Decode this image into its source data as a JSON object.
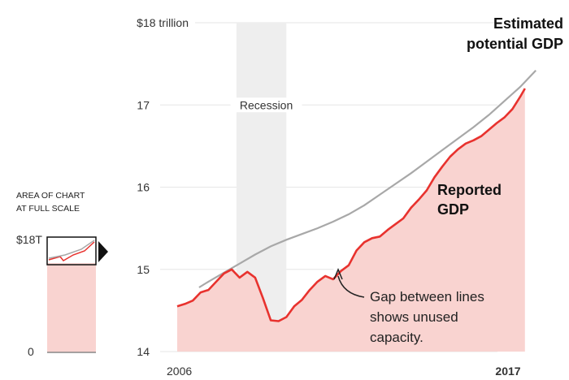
{
  "chart_data": {
    "type": "line",
    "title": "",
    "xlabel": "",
    "ylabel": "",
    "x_start_label": "2006",
    "x_end_label": "2017",
    "x_range": [
      2006.0,
      2017.5
    ],
    "ylim": [
      14,
      18
    ],
    "y_ticks": [
      {
        "value": 18,
        "label": "$18 trillion"
      },
      {
        "value": 17,
        "label": "17"
      },
      {
        "value": 16,
        "label": "16"
      },
      {
        "value": 15,
        "label": "15"
      },
      {
        "value": 14,
        "label": "14"
      }
    ],
    "grid": true,
    "recession": {
      "start": 2007.9,
      "end": 2009.5,
      "label": "Recession"
    },
    "series": [
      {
        "name": "Estimated potential GDP",
        "color": "#a8a8a8",
        "points": [
          [
            2006.7,
            14.78
          ],
          [
            2007.0,
            14.85
          ],
          [
            2007.5,
            14.96
          ],
          [
            2008.0,
            15.07
          ],
          [
            2008.5,
            15.18
          ],
          [
            2009.0,
            15.28
          ],
          [
            2009.5,
            15.36
          ],
          [
            2010.0,
            15.43
          ],
          [
            2010.5,
            15.5
          ],
          [
            2011.0,
            15.58
          ],
          [
            2011.5,
            15.67
          ],
          [
            2012.0,
            15.78
          ],
          [
            2012.5,
            15.91
          ],
          [
            2013.0,
            16.04
          ],
          [
            2013.5,
            16.17
          ],
          [
            2014.0,
            16.31
          ],
          [
            2014.5,
            16.45
          ],
          [
            2015.0,
            16.59
          ],
          [
            2015.5,
            16.73
          ],
          [
            2016.0,
            16.88
          ],
          [
            2016.5,
            17.05
          ],
          [
            2017.0,
            17.22
          ],
          [
            2017.5,
            17.42
          ]
        ]
      },
      {
        "name": "Reported GDP",
        "color": "#e8322e",
        "fill": "#f9d3d0",
        "points": [
          [
            2006.0,
            14.55
          ],
          [
            2006.25,
            14.58
          ],
          [
            2006.5,
            14.62
          ],
          [
            2006.75,
            14.72
          ],
          [
            2007.0,
            14.75
          ],
          [
            2007.25,
            14.85
          ],
          [
            2007.5,
            14.95
          ],
          [
            2007.75,
            15.0
          ],
          [
            2008.0,
            14.9
          ],
          [
            2008.25,
            14.97
          ],
          [
            2008.5,
            14.9
          ],
          [
            2008.75,
            14.65
          ],
          [
            2009.0,
            14.38
          ],
          [
            2009.25,
            14.37
          ],
          [
            2009.5,
            14.42
          ],
          [
            2009.75,
            14.55
          ],
          [
            2010.0,
            14.63
          ],
          [
            2010.25,
            14.75
          ],
          [
            2010.5,
            14.85
          ],
          [
            2010.75,
            14.92
          ],
          [
            2011.0,
            14.88
          ],
          [
            2011.25,
            14.98
          ],
          [
            2011.5,
            15.05
          ],
          [
            2011.75,
            15.23
          ],
          [
            2012.0,
            15.33
          ],
          [
            2012.25,
            15.38
          ],
          [
            2012.5,
            15.4
          ],
          [
            2012.75,
            15.48
          ],
          [
            2013.0,
            15.55
          ],
          [
            2013.25,
            15.62
          ],
          [
            2013.5,
            15.75
          ],
          [
            2013.75,
            15.85
          ],
          [
            2014.0,
            15.96
          ],
          [
            2014.25,
            16.12
          ],
          [
            2014.5,
            16.25
          ],
          [
            2014.75,
            16.37
          ],
          [
            2015.0,
            16.46
          ],
          [
            2015.25,
            16.53
          ],
          [
            2015.5,
            16.57
          ],
          [
            2015.75,
            16.62
          ],
          [
            2016.0,
            16.7
          ],
          [
            2016.25,
            16.78
          ],
          [
            2016.5,
            16.85
          ],
          [
            2016.75,
            16.95
          ],
          [
            2017.0,
            17.1
          ],
          [
            2017.15,
            17.2
          ]
        ]
      }
    ],
    "labels": {
      "potential_line1": "Estimated",
      "potential_line2": "potential GDP",
      "reported_line1": "Reported",
      "reported_line2": "GDP",
      "gap_line1": "Gap between lines",
      "gap_line2": "shows unused",
      "gap_line3": "capacity."
    },
    "inset": {
      "title_line1": "AREA OF CHART",
      "title_line2": "AT FULL SCALE",
      "top_label": "$18T",
      "bottom_label": "0"
    }
  }
}
